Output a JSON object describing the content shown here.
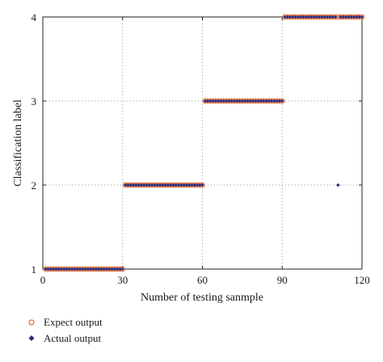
{
  "chart_data": {
    "type": "scatter",
    "xlabel": "Number of testing sanmple",
    "ylabel": "Classification label",
    "xlim": [
      0,
      120
    ],
    "ylim": [
      1,
      4
    ],
    "xticks": [
      0,
      30,
      60,
      90,
      120
    ],
    "yticks": [
      1,
      2,
      3,
      4
    ],
    "grid": true,
    "legend_position": "bottom-left, below plot",
    "series": [
      {
        "name": "Expect output",
        "marker": "open-circle",
        "color": "#e8743b",
        "points": [
          [
            1,
            1
          ],
          [
            2,
            1
          ],
          [
            3,
            1
          ],
          [
            4,
            1
          ],
          [
            5,
            1
          ],
          [
            6,
            1
          ],
          [
            7,
            1
          ],
          [
            8,
            1
          ],
          [
            9,
            1
          ],
          [
            10,
            1
          ],
          [
            11,
            1
          ],
          [
            12,
            1
          ],
          [
            13,
            1
          ],
          [
            14,
            1
          ],
          [
            15,
            1
          ],
          [
            16,
            1
          ],
          [
            17,
            1
          ],
          [
            18,
            1
          ],
          [
            19,
            1
          ],
          [
            20,
            1
          ],
          [
            21,
            1
          ],
          [
            22,
            1
          ],
          [
            23,
            1
          ],
          [
            24,
            1
          ],
          [
            25,
            1
          ],
          [
            26,
            1
          ],
          [
            27,
            1
          ],
          [
            28,
            1
          ],
          [
            29,
            1
          ],
          [
            30,
            1
          ],
          [
            31,
            2
          ],
          [
            32,
            2
          ],
          [
            33,
            2
          ],
          [
            34,
            2
          ],
          [
            35,
            2
          ],
          [
            36,
            2
          ],
          [
            37,
            2
          ],
          [
            38,
            2
          ],
          [
            39,
            2
          ],
          [
            40,
            2
          ],
          [
            41,
            2
          ],
          [
            42,
            2
          ],
          [
            43,
            2
          ],
          [
            44,
            2
          ],
          [
            45,
            2
          ],
          [
            46,
            2
          ],
          [
            47,
            2
          ],
          [
            48,
            2
          ],
          [
            49,
            2
          ],
          [
            50,
            2
          ],
          [
            51,
            2
          ],
          [
            52,
            2
          ],
          [
            53,
            2
          ],
          [
            54,
            2
          ],
          [
            55,
            2
          ],
          [
            56,
            2
          ],
          [
            57,
            2
          ],
          [
            58,
            2
          ],
          [
            59,
            2
          ],
          [
            60,
            2
          ],
          [
            61,
            3
          ],
          [
            62,
            3
          ],
          [
            63,
            3
          ],
          [
            64,
            3
          ],
          [
            65,
            3
          ],
          [
            66,
            3
          ],
          [
            67,
            3
          ],
          [
            68,
            3
          ],
          [
            69,
            3
          ],
          [
            70,
            3
          ],
          [
            71,
            3
          ],
          [
            72,
            3
          ],
          [
            73,
            3
          ],
          [
            74,
            3
          ],
          [
            75,
            3
          ],
          [
            76,
            3
          ],
          [
            77,
            3
          ],
          [
            78,
            3
          ],
          [
            79,
            3
          ],
          [
            80,
            3
          ],
          [
            81,
            3
          ],
          [
            82,
            3
          ],
          [
            83,
            3
          ],
          [
            84,
            3
          ],
          [
            85,
            3
          ],
          [
            86,
            3
          ],
          [
            87,
            3
          ],
          [
            88,
            3
          ],
          [
            89,
            3
          ],
          [
            90,
            3
          ],
          [
            91,
            4
          ],
          [
            92,
            4
          ],
          [
            93,
            4
          ],
          [
            94,
            4
          ],
          [
            95,
            4
          ],
          [
            96,
            4
          ],
          [
            97,
            4
          ],
          [
            98,
            4
          ],
          [
            99,
            4
          ],
          [
            100,
            4
          ],
          [
            101,
            4
          ],
          [
            102,
            4
          ],
          [
            103,
            4
          ],
          [
            104,
            4
          ],
          [
            105,
            4
          ],
          [
            106,
            4
          ],
          [
            107,
            4
          ],
          [
            108,
            4
          ],
          [
            109,
            4
          ],
          [
            110,
            4
          ],
          [
            111,
            4
          ],
          [
            112,
            4
          ],
          [
            113,
            4
          ],
          [
            114,
            4
          ],
          [
            115,
            4
          ],
          [
            116,
            4
          ],
          [
            117,
            4
          ],
          [
            118,
            4
          ],
          [
            119,
            4
          ],
          [
            120,
            4
          ]
        ]
      },
      {
        "name": "Actual output",
        "marker": "filled-diamond",
        "color": "#2a2a7a",
        "points": [
          [
            1,
            1
          ],
          [
            2,
            1
          ],
          [
            3,
            1
          ],
          [
            4,
            1
          ],
          [
            5,
            1
          ],
          [
            6,
            1
          ],
          [
            7,
            1
          ],
          [
            8,
            1
          ],
          [
            9,
            1
          ],
          [
            10,
            1
          ],
          [
            11,
            1
          ],
          [
            12,
            1
          ],
          [
            13,
            1
          ],
          [
            14,
            1
          ],
          [
            15,
            1
          ],
          [
            16,
            1
          ],
          [
            17,
            1
          ],
          [
            18,
            1
          ],
          [
            19,
            1
          ],
          [
            20,
            1
          ],
          [
            21,
            1
          ],
          [
            22,
            1
          ],
          [
            23,
            1
          ],
          [
            24,
            1
          ],
          [
            25,
            1
          ],
          [
            26,
            1
          ],
          [
            27,
            1
          ],
          [
            28,
            1
          ],
          [
            29,
            1
          ],
          [
            30,
            1
          ],
          [
            31,
            2
          ],
          [
            32,
            2
          ],
          [
            33,
            2
          ],
          [
            34,
            2
          ],
          [
            35,
            2
          ],
          [
            36,
            2
          ],
          [
            37,
            2
          ],
          [
            38,
            2
          ],
          [
            39,
            2
          ],
          [
            40,
            2
          ],
          [
            41,
            2
          ],
          [
            42,
            2
          ],
          [
            43,
            2
          ],
          [
            44,
            2
          ],
          [
            45,
            2
          ],
          [
            46,
            2
          ],
          [
            47,
            2
          ],
          [
            48,
            2
          ],
          [
            49,
            2
          ],
          [
            50,
            2
          ],
          [
            51,
            2
          ],
          [
            52,
            2
          ],
          [
            53,
            2
          ],
          [
            54,
            2
          ],
          [
            55,
            2
          ],
          [
            56,
            2
          ],
          [
            57,
            2
          ],
          [
            58,
            2
          ],
          [
            59,
            2
          ],
          [
            60,
            2
          ],
          [
            61,
            3
          ],
          [
            62,
            3
          ],
          [
            63,
            3
          ],
          [
            64,
            3
          ],
          [
            65,
            3
          ],
          [
            66,
            3
          ],
          [
            67,
            3
          ],
          [
            68,
            3
          ],
          [
            69,
            3
          ],
          [
            70,
            3
          ],
          [
            71,
            3
          ],
          [
            72,
            3
          ],
          [
            73,
            3
          ],
          [
            74,
            3
          ],
          [
            75,
            3
          ],
          [
            76,
            3
          ],
          [
            77,
            3
          ],
          [
            78,
            3
          ],
          [
            79,
            3
          ],
          [
            80,
            3
          ],
          [
            81,
            3
          ],
          [
            82,
            3
          ],
          [
            83,
            3
          ],
          [
            84,
            3
          ],
          [
            85,
            3
          ],
          [
            86,
            3
          ],
          [
            87,
            3
          ],
          [
            88,
            3
          ],
          [
            89,
            3
          ],
          [
            90,
            3
          ],
          [
            91,
            4
          ],
          [
            92,
            4
          ],
          [
            93,
            4
          ],
          [
            94,
            4
          ],
          [
            95,
            4
          ],
          [
            96,
            4
          ],
          [
            97,
            4
          ],
          [
            98,
            4
          ],
          [
            99,
            4
          ],
          [
            100,
            4
          ],
          [
            101,
            4
          ],
          [
            102,
            4
          ],
          [
            103,
            4
          ],
          [
            104,
            4
          ],
          [
            105,
            4
          ],
          [
            106,
            4
          ],
          [
            107,
            4
          ],
          [
            108,
            4
          ],
          [
            109,
            4
          ],
          [
            110,
            4
          ],
          [
            111,
            2
          ],
          [
            112,
            4
          ],
          [
            113,
            4
          ],
          [
            114,
            4
          ],
          [
            115,
            4
          ],
          [
            116,
            4
          ],
          [
            117,
            4
          ],
          [
            118,
            4
          ],
          [
            119,
            4
          ],
          [
            120,
            4
          ]
        ]
      }
    ]
  }
}
